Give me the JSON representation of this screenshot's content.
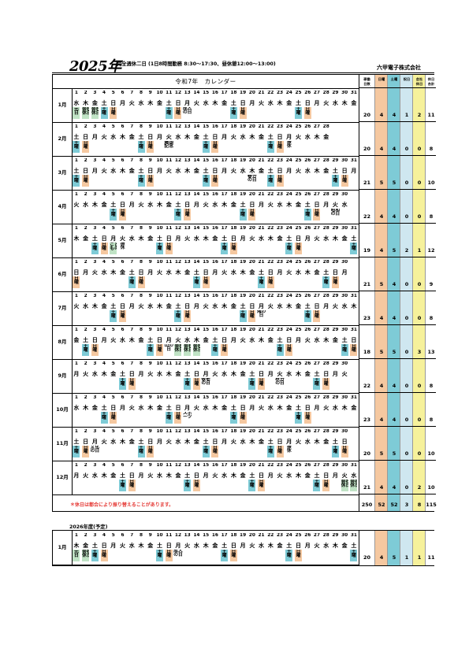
{
  "header": {
    "year": "2025年",
    "subtitle": "完全週休二日 (1日8時間勤務 8:30～17:30、昼休憩12:00～13:00)",
    "company": "六甲電子株式会社"
  },
  "calendar": {
    "title": "令和7年　カレンダー",
    "footnote": "＊休日は都合により振り替えることがあります。"
  },
  "stats": {
    "headers": [
      "稼働\n日数",
      "日曜",
      "土曜",
      "祝日",
      "会社\n休日",
      "休日\n合計"
    ],
    "colors": [
      "#ffffff",
      "#f5c8a0",
      "#7ecbd6",
      "#cfe7f0",
      "#f6f19b",
      "#ffffff"
    ],
    "totals": [
      "250",
      "52",
      "52",
      "3",
      "8",
      "115"
    ]
  },
  "months": [
    {
      "label": "1月",
      "days": 31,
      "weekdays": "水木金土日月火水木金土日月火水木金土日月火水木金土日月火水木金",
      "marks": [
        {
          "d": 1,
          "t": "hol",
          "x": "元\n日"
        },
        {
          "d": 2,
          "t": "hol",
          "x": "会社\n休日"
        },
        {
          "d": 3,
          "t": "hol",
          "x": "会社\n休日"
        },
        {
          "d": 4,
          "t": "sat",
          "x": "土\n曜"
        },
        {
          "d": 5,
          "t": "sun",
          "x": "日\n曜"
        },
        {
          "d": 11,
          "t": "sat",
          "x": "土\n曜"
        },
        {
          "d": 12,
          "t": "sun",
          "x": "日\n曜"
        },
        {
          "d": 13,
          "t": "note",
          "x": "成人\nの日"
        },
        {
          "d": 18,
          "t": "sat",
          "x": "土\n曜"
        },
        {
          "d": 19,
          "t": "sun",
          "x": "日\n曜"
        },
        {
          "d": 25,
          "t": "sat",
          "x": "土\n曜"
        },
        {
          "d": 26,
          "t": "sun",
          "x": "日\n曜"
        }
      ],
      "stats": [
        "20",
        "4",
        "4",
        "1",
        "2",
        "11"
      ]
    },
    {
      "label": "2月",
      "days": 28,
      "weekdays": "土日月火水木金土日月火水木金土日月火水木金土日月火水木金",
      "marks": [
        {
          "d": 1,
          "t": "sat",
          "x": "土\n曜"
        },
        {
          "d": 2,
          "t": "sun",
          "x": "日\n曜"
        },
        {
          "d": 8,
          "t": "sat",
          "x": "土\n曜"
        },
        {
          "d": 9,
          "t": "sun",
          "x": "日\n曜"
        },
        {
          "d": 11,
          "t": "note",
          "x": "建国\n記念"
        },
        {
          "d": 15,
          "t": "sat",
          "x": "土\n曜"
        },
        {
          "d": 16,
          "t": "sun",
          "x": "日\n曜"
        },
        {
          "d": 22,
          "t": "sat",
          "x": "土\n曜"
        },
        {
          "d": 23,
          "t": "sun",
          "x": "日\n曜"
        },
        {
          "d": 24,
          "t": "note",
          "x": "振\n休"
        }
      ],
      "stats": [
        "20",
        "4",
        "4",
        "0",
        "0",
        "8"
      ]
    },
    {
      "label": "3月",
      "days": 31,
      "weekdays": "土日月火水木金土日月火水木金土日月火水木金土日月火水木金土日月",
      "marks": [
        {
          "d": 1,
          "t": "sat",
          "x": "土\n曜"
        },
        {
          "d": 2,
          "t": "sun",
          "x": "日\n曜"
        },
        {
          "d": 8,
          "t": "sat",
          "x": "土\n曜"
        },
        {
          "d": 9,
          "t": "sun",
          "x": "日\n曜"
        },
        {
          "d": 15,
          "t": "sat",
          "x": "土\n曜"
        },
        {
          "d": 16,
          "t": "sun",
          "x": "日\n曜"
        },
        {
          "d": 20,
          "t": "note",
          "x": "春分\nの日"
        },
        {
          "d": 22,
          "t": "sat",
          "x": "土\n曜"
        },
        {
          "d": 23,
          "t": "sun",
          "x": "日\n曜"
        },
        {
          "d": 29,
          "t": "sat",
          "x": "土\n曜"
        },
        {
          "d": 30,
          "t": "sun",
          "x": "日\n曜"
        }
      ],
      "stats": [
        "21",
        "5",
        "5",
        "0",
        "0",
        "10"
      ]
    },
    {
      "label": "4月",
      "days": 30,
      "weekdays": "火水木金土日月火水木金土日月火水木金土日月火水木金土日月火水",
      "marks": [
        {
          "d": 5,
          "t": "sat",
          "x": "土\n曜"
        },
        {
          "d": 6,
          "t": "sun",
          "x": "日\n曜"
        },
        {
          "d": 12,
          "t": "sat",
          "x": "土\n曜"
        },
        {
          "d": 13,
          "t": "sun",
          "x": "日\n曜"
        },
        {
          "d": 19,
          "t": "sat",
          "x": "土\n曜"
        },
        {
          "d": 20,
          "t": "sun",
          "x": "日\n曜"
        },
        {
          "d": 26,
          "t": "sat",
          "x": "土\n曜"
        },
        {
          "d": 27,
          "t": "sun",
          "x": "日\n曜"
        },
        {
          "d": 29,
          "t": "note",
          "x": "昭和\nの日"
        }
      ],
      "stats": [
        "22",
        "4",
        "4",
        "0",
        "0",
        "8"
      ]
    },
    {
      "label": "5月",
      "days": 31,
      "weekdays": "木金土日月火水木金土日月火水木金土日月火水木金土日月火水木金土",
      "marks": [
        {
          "d": 3,
          "t": "sat",
          "x": "土\n曜"
        },
        {
          "d": 4,
          "t": "sun",
          "x": "日\n曜"
        },
        {
          "d": 5,
          "t": "hol",
          "x": "こど\nもの"
        },
        {
          "d": 6,
          "t": "note",
          "x": "振\n休"
        },
        {
          "d": 10,
          "t": "sat",
          "x": "土\n曜"
        },
        {
          "d": 11,
          "t": "sun",
          "x": "日\n曜"
        },
        {
          "d": 17,
          "t": "sat",
          "x": "土\n曜"
        },
        {
          "d": 18,
          "t": "sun",
          "x": "日\n曜"
        },
        {
          "d": 24,
          "t": "sat",
          "x": "土\n曜"
        },
        {
          "d": 25,
          "t": "sun",
          "x": "日\n曜"
        },
        {
          "d": 31,
          "t": "sat",
          "x": "土\n曜"
        }
      ],
      "stats": [
        "19",
        "4",
        "5",
        "2",
        "1",
        "12"
      ]
    },
    {
      "label": "6月",
      "days": 30,
      "weekdays": "日月火水木金土日月火水木金土日月火水木金土日月火水木金土日月",
      "marks": [
        {
          "d": 1,
          "t": "sun",
          "x": "日\n曜"
        },
        {
          "d": 7,
          "t": "sat",
          "x": "土\n曜"
        },
        {
          "d": 8,
          "t": "sun",
          "x": "日\n曜"
        },
        {
          "d": 14,
          "t": "sat",
          "x": "土\n曜"
        },
        {
          "d": 15,
          "t": "sun",
          "x": "日\n曜"
        },
        {
          "d": 21,
          "t": "sat",
          "x": "土\n曜"
        },
        {
          "d": 22,
          "t": "sun",
          "x": "日\n曜"
        },
        {
          "d": 28,
          "t": "sat",
          "x": "土\n曜"
        },
        {
          "d": 29,
          "t": "sun",
          "x": "日\n曜"
        }
      ],
      "stats": [
        "21",
        "5",
        "4",
        "0",
        "0",
        "9"
      ]
    },
    {
      "label": "7月",
      "days": 31,
      "weekdays": "火水木金土日月火水木金土日月火水木金土日月火水木金土日月火水木",
      "marks": [
        {
          "d": 5,
          "t": "sat",
          "x": "土\n曜"
        },
        {
          "d": 6,
          "t": "sun",
          "x": "日\n曜"
        },
        {
          "d": 12,
          "t": "sat",
          "x": "土\n曜"
        },
        {
          "d": 13,
          "t": "sun",
          "x": "日\n曜"
        },
        {
          "d": 19,
          "t": "sat",
          "x": "土\n曜"
        },
        {
          "d": 20,
          "t": "sun",
          "x": "日\n曜"
        },
        {
          "d": 21,
          "t": "note",
          "x": "海の\n日"
        },
        {
          "d": 26,
          "t": "sat",
          "x": "土\n曜"
        },
        {
          "d": 27,
          "t": "sun",
          "x": "日\n曜"
        }
      ],
      "stats": [
        "23",
        "4",
        "4",
        "0",
        "0",
        "8"
      ]
    },
    {
      "label": "8月",
      "days": 31,
      "weekdays": "金土日月火水木金土日月火水木金土日月火水木金土日月火水木金土日",
      "marks": [
        {
          "d": 2,
          "t": "sat",
          "x": "土\n曜"
        },
        {
          "d": 3,
          "t": "sun",
          "x": "日\n曜"
        },
        {
          "d": 9,
          "t": "sat",
          "x": "土\n曜"
        },
        {
          "d": 10,
          "t": "sun",
          "x": "日\n曜"
        },
        {
          "d": 11,
          "t": "note",
          "x": "山の\n日"
        },
        {
          "d": 12,
          "t": "hol",
          "x": "会社\n休日"
        },
        {
          "d": 13,
          "t": "hol",
          "x": "会社\n休日"
        },
        {
          "d": 14,
          "t": "hol",
          "x": "会社\n休日"
        },
        {
          "d": 16,
          "t": "sat",
          "x": "土\n曜"
        },
        {
          "d": 17,
          "t": "sun",
          "x": "日\n曜"
        },
        {
          "d": 23,
          "t": "sat",
          "x": "土\n曜"
        },
        {
          "d": 24,
          "t": "sun",
          "x": "日\n曜"
        },
        {
          "d": 30,
          "t": "sat",
          "x": "土\n曜"
        },
        {
          "d": 31,
          "t": "sun",
          "x": "日\n曜"
        }
      ],
      "stats": [
        "18",
        "5",
        "5",
        "0",
        "3",
        "13"
      ]
    },
    {
      "label": "9月",
      "days": 30,
      "weekdays": "月火水木金土日月火水木金土日月火水木金土日月火水木金土日月火",
      "marks": [
        {
          "d": 6,
          "t": "sat",
          "x": "土\n曜"
        },
        {
          "d": 7,
          "t": "sun",
          "x": "日\n曜"
        },
        {
          "d": 13,
          "t": "sat",
          "x": "土\n曜"
        },
        {
          "d": 14,
          "t": "sun",
          "x": "日\n曜"
        },
        {
          "d": 15,
          "t": "note",
          "x": "敬老\nの日"
        },
        {
          "d": 20,
          "t": "sat",
          "x": "土\n曜"
        },
        {
          "d": 21,
          "t": "sun",
          "x": "日\n曜"
        },
        {
          "d": 23,
          "t": "note",
          "x": "秋分\nの日"
        },
        {
          "d": 27,
          "t": "sat",
          "x": "土\n曜"
        },
        {
          "d": 28,
          "t": "sun",
          "x": "日\n曜"
        }
      ],
      "stats": [
        "22",
        "4",
        "4",
        "0",
        "0",
        "8"
      ]
    },
    {
      "label": "10月",
      "days": 31,
      "weekdays": "水木金土日月火水木金土日月火水木金土日月火水木金土日月火水木金",
      "marks": [
        {
          "d": 4,
          "t": "sat",
          "x": "土\n曜"
        },
        {
          "d": 5,
          "t": "sun",
          "x": "日\n曜"
        },
        {
          "d": 11,
          "t": "sat",
          "x": "土\n曜"
        },
        {
          "d": 12,
          "t": "sun",
          "x": "日\n曜"
        },
        {
          "d": 13,
          "t": "note",
          "x": "スポ\nーツ"
        },
        {
          "d": 18,
          "t": "sat",
          "x": "土\n曜"
        },
        {
          "d": 19,
          "t": "sun",
          "x": "日\n曜"
        },
        {
          "d": 25,
          "t": "sat",
          "x": "土\n曜"
        },
        {
          "d": 26,
          "t": "sun",
          "x": "日\n曜"
        }
      ],
      "stats": [
        "23",
        "4",
        "4",
        "0",
        "0",
        "8"
      ]
    },
    {
      "label": "11月",
      "days": 30,
      "weekdays": "土日月火水木金土日月火水木金土日月火水木金土日月火水木金土日",
      "marks": [
        {
          "d": 1,
          "t": "sat",
          "x": "土\n曜"
        },
        {
          "d": 2,
          "t": "sun",
          "x": "日\n曜"
        },
        {
          "d": 3,
          "t": "note",
          "x": "文化\nの日"
        },
        {
          "d": 8,
          "t": "sat",
          "x": "土\n曜"
        },
        {
          "d": 9,
          "t": "sun",
          "x": "日\n曜"
        },
        {
          "d": 15,
          "t": "sat",
          "x": "土\n曜"
        },
        {
          "d": 16,
          "t": "sun",
          "x": "日\n曜"
        },
        {
          "d": 22,
          "t": "sat",
          "x": "土\n曜"
        },
        {
          "d": 23,
          "t": "sun",
          "x": "日\n曜"
        },
        {
          "d": 24,
          "t": "note",
          "x": "振\n休"
        },
        {
          "d": 29,
          "t": "sat",
          "x": "土\n曜"
        },
        {
          "d": 30,
          "t": "sun",
          "x": "日\n曜"
        }
      ],
      "stats": [
        "20",
        "5",
        "5",
        "0",
        "0",
        "10"
      ]
    },
    {
      "label": "12月",
      "days": 31,
      "weekdays": "月火水木金土日月火水木金土日月火水木金土日月火水木金土日月火水",
      "marks": [
        {
          "d": 6,
          "t": "sat",
          "x": "土\n曜"
        },
        {
          "d": 7,
          "t": "sun",
          "x": "日\n曜"
        },
        {
          "d": 13,
          "t": "sat",
          "x": "土\n曜"
        },
        {
          "d": 14,
          "t": "sun",
          "x": "日\n曜"
        },
        {
          "d": 20,
          "t": "sat",
          "x": "土\n曜"
        },
        {
          "d": 21,
          "t": "sun",
          "x": "日\n曜"
        },
        {
          "d": 27,
          "t": "sat",
          "x": "土\n曜"
        },
        {
          "d": 28,
          "t": "sun",
          "x": "日\n曜"
        },
        {
          "d": 30,
          "t": "hol",
          "x": "会社\n休日"
        },
        {
          "d": 31,
          "t": "hol",
          "x": "会社\n休日"
        }
      ],
      "stats": [
        "21",
        "4",
        "4",
        "0",
        "2",
        "10"
      ]
    }
  ],
  "next": {
    "title": "2026年度(予定)",
    "month": {
      "label": "1月",
      "days": 31,
      "weekdays": "木金土日月火水木金土日月火水木金土日月火水木金土日月火水木金土",
      "marks": [
        {
          "d": 1,
          "t": "hol",
          "x": "元\n日"
        },
        {
          "d": 2,
          "t": "hol",
          "x": "会社\n休日"
        },
        {
          "d": 3,
          "t": "sat",
          "x": "土\n曜"
        },
        {
          "d": 4,
          "t": "sun",
          "x": "日\n曜"
        },
        {
          "d": 10,
          "t": "sat",
          "x": "土\n曜"
        },
        {
          "d": 11,
          "t": "sun",
          "x": "日\n曜"
        },
        {
          "d": 12,
          "t": "note",
          "x": "成人\nの日"
        },
        {
          "d": 17,
          "t": "sat",
          "x": "土\n曜"
        },
        {
          "d": 18,
          "t": "sun",
          "x": "日\n曜"
        },
        {
          "d": 24,
          "t": "sat",
          "x": "土\n曜"
        },
        {
          "d": 25,
          "t": "sun",
          "x": "日\n曜"
        },
        {
          "d": 31,
          "t": "sat",
          "x": "土\n曜"
        }
      ],
      "stats": [
        "20",
        "4",
        "5",
        "1",
        "1",
        "11"
      ]
    }
  }
}
